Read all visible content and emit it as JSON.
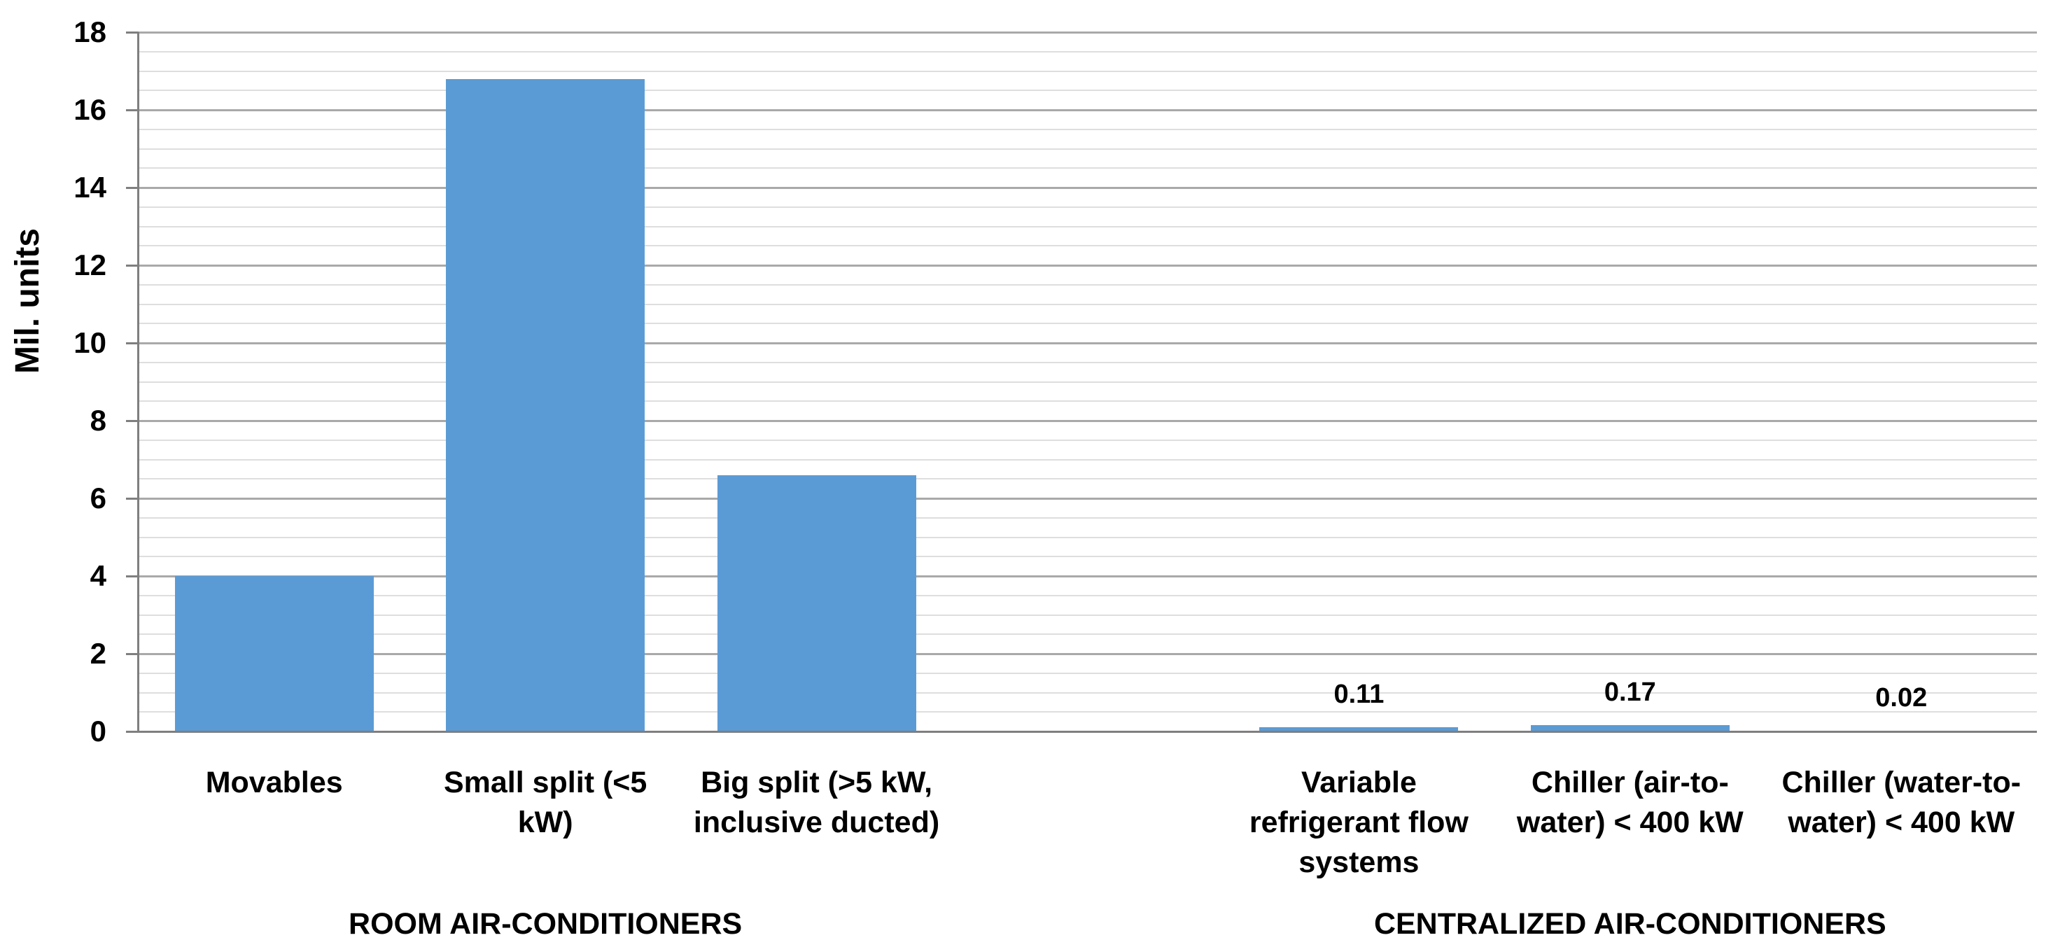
{
  "chart_data": {
    "type": "bar",
    "title": "",
    "ylabel": "Mil. units",
    "xlabel": "",
    "ylim": [
      0,
      18
    ],
    "y_major_step": 2,
    "y_minor_step": 0.5,
    "y_tick_labels": [
      "0",
      "2",
      "4",
      "6",
      "8",
      "10",
      "12",
      "14",
      "16",
      "18"
    ],
    "grid": "horizontal, minor every 0.5 (light gray), major every 2 (darker gray)",
    "legend": "none",
    "categories": [
      {
        "label": "Movables",
        "lines": [
          "Movables"
        ],
        "value": 4.0,
        "data_label": "",
        "group": "ROOM AIR-CONDITIONERS"
      },
      {
        "label": "Small split (<5 kW)",
        "lines": [
          "Small split (<5",
          "kW)"
        ],
        "value": 16.8,
        "data_label": "",
        "group": "ROOM AIR-CONDITIONERS"
      },
      {
        "label": "Big split (>5 kW, inclusive ducted)",
        "lines": [
          "Big split (>5 kW,",
          "inclusive ducted)"
        ],
        "value": 6.6,
        "data_label": "",
        "group": "ROOM AIR-CONDITIONERS"
      },
      {
        "label": "",
        "lines": [],
        "value": null,
        "data_label": "",
        "group": ""
      },
      {
        "label": "Variable refrigerant flow systems",
        "lines": [
          "Variable",
          "refrigerant flow",
          "systems"
        ],
        "value": 0.11,
        "data_label": "0.11",
        "group": "CENTRALIZED AIR-CONDITIONERS"
      },
      {
        "label": "Chiller (air-to-water) < 400 kW",
        "lines": [
          "Chiller (air-to-",
          "water) < 400 kW"
        ],
        "value": 0.17,
        "data_label": "0.17",
        "group": "CENTRALIZED AIR-CONDITIONERS"
      },
      {
        "label": "Chiller (water-to-water) < 400 kW",
        "lines": [
          "Chiller (water-to-",
          "water) < 400 kW"
        ],
        "value": 0.02,
        "data_label": "0.02",
        "group": "CENTRALIZED AIR-CONDITIONERS"
      }
    ],
    "groups": [
      {
        "label": "ROOM AIR-CONDITIONERS",
        "start_index": 0,
        "end_index": 2
      },
      {
        "label": "CENTRALIZED AIR-CONDITIONERS",
        "start_index": 4,
        "end_index": 6
      }
    ],
    "colors": {
      "bar": "#5B9BD5",
      "major_gridline": "#A9A9A9",
      "minor_gridline": "#DEDEDE",
      "axis_line": "#7F7F7F",
      "text": "#000000",
      "background": "#FFFFFF"
    }
  }
}
